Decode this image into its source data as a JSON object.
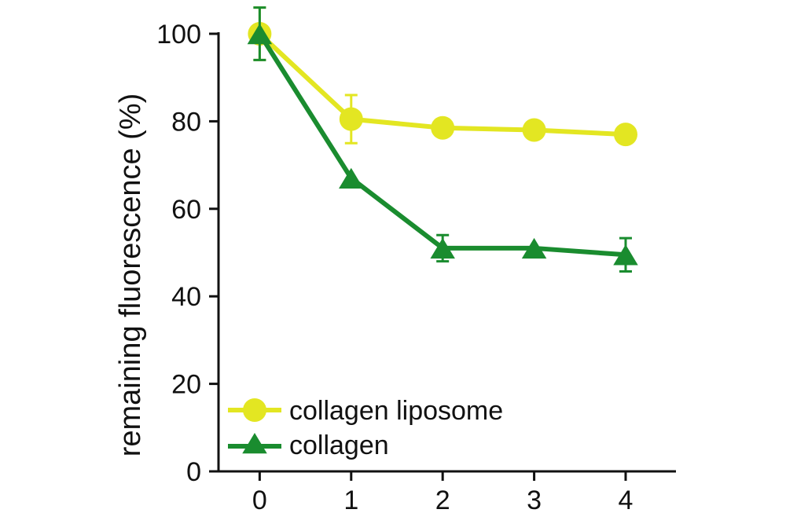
{
  "chart_data": {
    "type": "line",
    "title": "",
    "xlabel": "",
    "ylabel": "remaining fluorescence (%)",
    "x": [
      0,
      1,
      2,
      3,
      4
    ],
    "xlim": [
      -0.45,
      4.55
    ],
    "ylim": [
      0,
      100
    ],
    "yticks": [
      0,
      20,
      40,
      60,
      80,
      100
    ],
    "xticks": [
      0,
      1,
      2,
      3,
      4
    ],
    "legend_position": "bottom-left",
    "series": [
      {
        "name": "collagen liposome",
        "marker": "circle",
        "color": "#e3e622",
        "values": [
          100,
          80.5,
          78.5,
          78,
          77
        ],
        "errors": [
          6,
          5.5,
          0,
          0,
          0
        ]
      },
      {
        "name": "collagen",
        "marker": "triangle",
        "color": "#1a8c2f",
        "values": [
          100,
          67,
          51,
          51,
          49.5
        ],
        "errors": [
          6,
          0,
          3,
          0,
          3.8
        ]
      }
    ]
  }
}
